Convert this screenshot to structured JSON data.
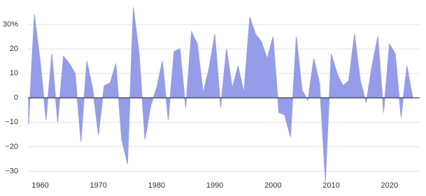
{
  "chart_data": {
    "type": "area",
    "x": [
      1958,
      1959,
      1960,
      1961,
      1962,
      1963,
      1964,
      1965,
      1966,
      1967,
      1968,
      1969,
      1970,
      1971,
      1972,
      1973,
      1974,
      1975,
      1976,
      1977,
      1978,
      1979,
      1980,
      1981,
      1982,
      1983,
      1984,
      1985,
      1986,
      1987,
      1988,
      1989,
      1990,
      1991,
      1992,
      1993,
      1994,
      1995,
      1996,
      1997,
      1998,
      1999,
      2000,
      2001,
      2002,
      2003,
      2004,
      2005,
      2006,
      2007,
      2008,
      2009,
      2010,
      2011,
      2012,
      2013,
      2014,
      2015,
      2016,
      2017,
      2018,
      2019,
      2020,
      2021,
      2022,
      2023,
      2024
    ],
    "values": [
      -11,
      34,
      15,
      -9,
      18,
      -10,
      17,
      14,
      10,
      -18,
      15,
      4,
      -15,
      5,
      6,
      14,
      -17,
      -27,
      37,
      18,
      -17,
      -3,
      4,
      15,
      -9,
      19,
      20,
      -4,
      27,
      22,
      2,
      12,
      26,
      -4,
      20,
      4,
      13,
      2,
      33,
      26,
      23,
      16,
      25,
      -6,
      -7,
      -16,
      25,
      3,
      -1,
      16,
      6,
      -34,
      18,
      10,
      5,
      7,
      26,
      7,
      -2,
      13,
      25,
      -6,
      22,
      18,
      -8,
      13,
      0
    ],
    "color": "#959de8",
    "xlim": [
      1957.9,
      2025.2
    ],
    "ylim": [
      -37,
      40
    ],
    "xticks": [
      1960,
      1970,
      1980,
      1990,
      2000,
      2010,
      2020
    ],
    "yticks": [
      {
        "value": -30,
        "label": "−30"
      },
      {
        "value": -20,
        "label": "−20"
      },
      {
        "value": -10,
        "label": "−10"
      },
      0,
      10,
      20,
      {
        "value": 30,
        "label": "30%"
      }
    ],
    "grid": true
  }
}
